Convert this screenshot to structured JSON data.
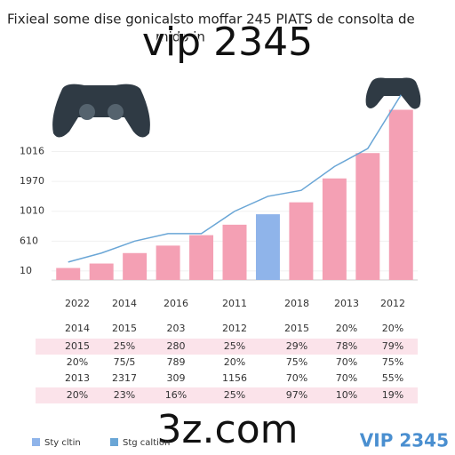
{
  "chart_data": {
    "type": "bar",
    "title": "Fixieal some dise gonicalsto moffar 245 PIATS de consolta de",
    "subtitle": "mido in",
    "watermark": "vip 2345",
    "footer_watermark": "3z.com",
    "brand": "VIP 2345",
    "categories": [
      null,
      null,
      null,
      null,
      null,
      null,
      null,
      null,
      null,
      null,
      null
    ],
    "series": [
      {
        "name": "Sty cltin",
        "color": "#f4a0b4",
        "highlight_color": "#8fb4ea",
        "highlight_index": 6,
        "values": [
          0.4,
          0.55,
          0.9,
          1.15,
          1.5,
          1.85,
          2.2,
          2.6,
          3.4,
          4.25,
          5.7
        ]
      },
      {
        "name": "Stg caltion",
        "type": "line",
        "color": "#6aa6d6",
        "values": [
          0.6,
          0.9,
          1.3,
          1.55,
          1.55,
          2.3,
          2.8,
          3.0,
          3.8,
          4.4,
          6.2
        ]
      }
    ],
    "ylim": [
      0,
      6.4
    ],
    "yticks": [
      {
        "value": 0.3,
        "label": "10"
      },
      {
        "value": 1.3,
        "label": "610"
      },
      {
        "value": 2.3,
        "label": "1010"
      },
      {
        "value": 3.3,
        "label": "1970"
      },
      {
        "value": 4.3,
        "label": "1016"
      }
    ],
    "table": {
      "header": [
        "2022",
        "2014",
        "2016",
        "2011",
        "2018",
        "2013",
        "2012"
      ],
      "rows": [
        [
          "2014",
          "2015",
          "203",
          "2012",
          "2015",
          "20%",
          "20%"
        ],
        [
          "2015",
          "25%",
          "280",
          "25%",
          "29%",
          "78%",
          "79%"
        ],
        [
          "20%",
          "75/5",
          "789",
          "20%",
          "75%",
          "70%",
          "75%"
        ],
        [
          "2013",
          "2317",
          "309",
          "1156",
          "70%",
          "70%",
          "55%"
        ],
        [
          "20%",
          "23%",
          "16%",
          "25%",
          "97%",
          "10%",
          "19%"
        ]
      ],
      "highlight_rows": [
        1,
        4
      ]
    }
  }
}
